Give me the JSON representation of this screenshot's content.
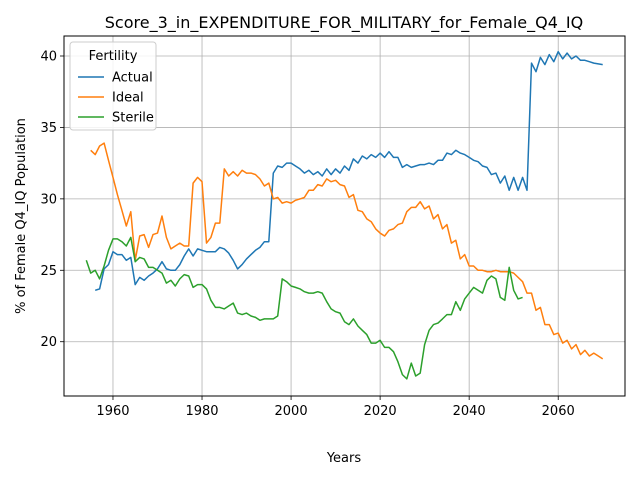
{
  "chart_data": {
    "type": "line",
    "title": "Score_3_in_EXPENDITURE_FOR_MILITARY_for_Female_Q4_IQ",
    "xlabel": "Years",
    "ylabel": "% of Female Q4_IQ Population",
    "xlim": [
      1949,
      2075
    ],
    "ylim": [
      16.2,
      41.4
    ],
    "xticks": [
      1960,
      1980,
      2000,
      2020,
      2040,
      2060
    ],
    "yticks": [
      20,
      25,
      30,
      35,
      40
    ],
    "grid": true,
    "legend": {
      "title": "Fertility",
      "placement": "top-left"
    },
    "series": [
      {
        "name": "Actual",
        "color": "#1f77b4",
        "x": [
          1956,
          1957,
          1958,
          1959,
          1960,
          1961,
          1962,
          1963,
          1964,
          1965,
          1966,
          1967,
          1968,
          1969,
          1970,
          1971,
          1972,
          1973,
          1974,
          1975,
          1976,
          1977,
          1978,
          1979,
          1980,
          1981,
          1982,
          1983,
          1984,
          1985,
          1986,
          1987,
          1988,
          1989,
          1990,
          1991,
          1992,
          1993,
          1994,
          1995,
          1996,
          1997,
          1998,
          1999,
          2000,
          2001,
          2002,
          2003,
          2004,
          2005,
          2006,
          2007,
          2008,
          2009,
          2010,
          2011,
          2012,
          2013,
          2014,
          2015,
          2016,
          2017,
          2018,
          2019,
          2020,
          2021,
          2022,
          2023,
          2024,
          2025,
          2026,
          2027,
          2028,
          2029,
          2030,
          2031,
          2032,
          2033,
          2034,
          2035,
          2036,
          2037,
          2038,
          2039,
          2040,
          2041,
          2042,
          2043,
          2044,
          2045,
          2046,
          2047,
          2048,
          2049,
          2050,
          2051,
          2052,
          2053,
          2054,
          2055,
          2056,
          2057,
          2058,
          2059,
          2060,
          2061,
          2062,
          2063,
          2064,
          2065,
          2066,
          2067,
          2068,
          2069,
          2070
        ],
        "values": [
          23.6,
          23.7,
          25.1,
          25.4,
          26.3,
          26.1,
          26.1,
          25.7,
          25.9,
          24.0,
          24.5,
          24.3,
          24.6,
          24.8,
          25.1,
          25.6,
          25.1,
          25.0,
          25.0,
          25.4,
          26.0,
          26.5,
          26.0,
          26.5,
          26.4,
          26.3,
          26.3,
          26.3,
          26.6,
          26.5,
          26.2,
          25.7,
          25.1,
          25.4,
          25.8,
          26.1,
          26.4,
          26.6,
          27.0,
          27.0,
          31.8,
          32.3,
          32.2,
          32.5,
          32.5,
          32.3,
          32.1,
          31.8,
          32.0,
          31.7,
          31.9,
          31.6,
          32.1,
          31.7,
          32.1,
          31.8,
          32.3,
          32.0,
          32.8,
          32.5,
          33.0,
          32.8,
          33.1,
          32.9,
          33.2,
          32.9,
          33.3,
          32.9,
          32.9,
          32.2,
          32.4,
          32.2,
          32.3,
          32.4,
          32.4,
          32.5,
          32.4,
          32.7,
          32.7,
          33.2,
          33.1,
          33.4,
          33.2,
          33.1,
          32.9,
          32.7,
          32.6,
          32.3,
          32.2,
          31.7,
          31.8,
          31.1,
          31.6,
          30.6,
          31.5,
          30.6,
          31.5,
          30.6,
          39.5,
          38.9,
          39.9,
          39.4,
          40.1,
          39.6,
          40.3,
          39.8,
          40.2,
          39.8,
          40.0,
          39.7,
          39.7,
          39.6,
          39.5,
          39.45,
          39.4
        ]
      },
      {
        "name": "Ideal",
        "color": "#ff7f0e",
        "x": [
          1955,
          1956,
          1957,
          1958,
          1959,
          1960,
          1961,
          1962,
          1963,
          1964,
          1965,
          1966,
          1967,
          1968,
          1969,
          1970,
          1971,
          1972,
          1973,
          1974,
          1975,
          1976,
          1977,
          1978,
          1979,
          1980,
          1981,
          1982,
          1983,
          1984,
          1985,
          1986,
          1987,
          1988,
          1989,
          1990,
          1991,
          1992,
          1993,
          1994,
          1995,
          1996,
          1997,
          1998,
          1999,
          2000,
          2001,
          2002,
          2003,
          2004,
          2005,
          2006,
          2007,
          2008,
          2009,
          2010,
          2011,
          2012,
          2013,
          2014,
          2015,
          2016,
          2017,
          2018,
          2019,
          2020,
          2021,
          2022,
          2023,
          2024,
          2025,
          2026,
          2027,
          2028,
          2029,
          2030,
          2031,
          2032,
          2033,
          2034,
          2035,
          2036,
          2037,
          2038,
          2039,
          2040,
          2041,
          2042,
          2043,
          2044,
          2045,
          2046,
          2047,
          2048,
          2049,
          2050,
          2051,
          2052,
          2053,
          2054,
          2055,
          2056,
          2057,
          2058,
          2059,
          2060,
          2061,
          2062,
          2063,
          2064,
          2065,
          2066,
          2067,
          2068,
          2069,
          2070
        ],
        "values": [
          33.4,
          33.1,
          33.7,
          33.9,
          32.7,
          31.5,
          30.3,
          29.2,
          28.1,
          29.1,
          25.7,
          27.4,
          27.5,
          26.6,
          27.5,
          27.6,
          28.8,
          27.3,
          26.5,
          26.7,
          26.9,
          26.7,
          26.7,
          31.1,
          31.5,
          31.2,
          26.9,
          27.3,
          28.3,
          28.3,
          32.1,
          31.6,
          31.9,
          31.6,
          32.0,
          31.8,
          31.8,
          31.7,
          31.4,
          30.9,
          31.1,
          30.0,
          30.1,
          29.7,
          29.8,
          29.7,
          29.9,
          30.0,
          30.1,
          30.6,
          30.6,
          31.0,
          30.9,
          31.4,
          31.2,
          31.3,
          31.0,
          30.9,
          30.1,
          30.3,
          29.2,
          29.1,
          28.6,
          28.4,
          27.9,
          27.6,
          27.4,
          27.8,
          27.9,
          28.2,
          28.3,
          29.1,
          29.4,
          29.4,
          29.8,
          29.3,
          29.5,
          28.6,
          28.9,
          27.9,
          28.2,
          26.9,
          27.1,
          25.8,
          26.1,
          25.3,
          25.3,
          25.0,
          25.0,
          24.9,
          24.9,
          25.0,
          24.9,
          24.9,
          24.9,
          24.8,
          24.5,
          24.2,
          23.4,
          23.4,
          22.2,
          22.4,
          21.2,
          21.2,
          20.5,
          20.6,
          19.9,
          20.1,
          19.5,
          19.8,
          19.1,
          19.4,
          19.0,
          19.2,
          19.0,
          18.8
        ]
      },
      {
        "name": "Sterile",
        "color": "#2ca02c",
        "x": [
          1954,
          1955,
          1956,
          1957,
          1958,
          1959,
          1960,
          1961,
          1962,
          1963,
          1964,
          1965,
          1966,
          1967,
          1968,
          1969,
          1970,
          1971,
          1972,
          1973,
          1974,
          1975,
          1976,
          1977,
          1978,
          1979,
          1980,
          1981,
          1982,
          1983,
          1984,
          1985,
          1986,
          1987,
          1988,
          1989,
          1990,
          1991,
          1992,
          1993,
          1994,
          1995,
          1996,
          1997,
          1998,
          1999,
          2000,
          2001,
          2002,
          2003,
          2004,
          2005,
          2006,
          2007,
          2008,
          2009,
          2010,
          2011,
          2012,
          2013,
          2014,
          2015,
          2016,
          2017,
          2018,
          2019,
          2020,
          2021,
          2022,
          2023,
          2024,
          2025,
          2026,
          2027,
          2028,
          2029,
          2030,
          2031,
          2032,
          2033,
          2034,
          2035,
          2036,
          2037,
          2038,
          2039,
          2040,
          2041,
          2042,
          2043,
          2044,
          2045,
          2046,
          2047,
          2048,
          2049,
          2050,
          2051,
          2052
        ],
        "values": [
          25.7,
          24.8,
          25.0,
          24.4,
          25.3,
          26.4,
          27.2,
          27.2,
          27.0,
          26.7,
          27.3,
          25.6,
          25.9,
          25.8,
          25.2,
          25.2,
          25.0,
          24.8,
          24.1,
          24.3,
          23.9,
          24.4,
          24.7,
          24.6,
          23.8,
          24.0,
          24.0,
          23.7,
          22.9,
          22.4,
          22.4,
          22.3,
          22.5,
          22.7,
          22.0,
          21.9,
          22.0,
          21.8,
          21.7,
          21.5,
          21.6,
          21.6,
          21.6,
          21.8,
          24.4,
          24.2,
          23.9,
          23.8,
          23.7,
          23.5,
          23.4,
          23.4,
          23.5,
          23.4,
          22.8,
          22.3,
          22.1,
          22.0,
          21.4,
          21.2,
          21.6,
          21.1,
          20.8,
          20.5,
          19.9,
          19.9,
          20.1,
          19.6,
          19.6,
          19.3,
          18.6,
          17.7,
          17.4,
          18.5,
          17.6,
          17.8,
          19.8,
          20.8,
          21.2,
          21.3,
          21.6,
          21.9,
          21.9,
          22.8,
          22.2,
          23.0,
          23.4,
          23.8,
          23.6,
          23.4,
          24.3,
          24.6,
          24.4,
          23.1,
          22.9,
          25.2,
          23.6,
          23.0,
          23.1
        ]
      }
    ]
  }
}
